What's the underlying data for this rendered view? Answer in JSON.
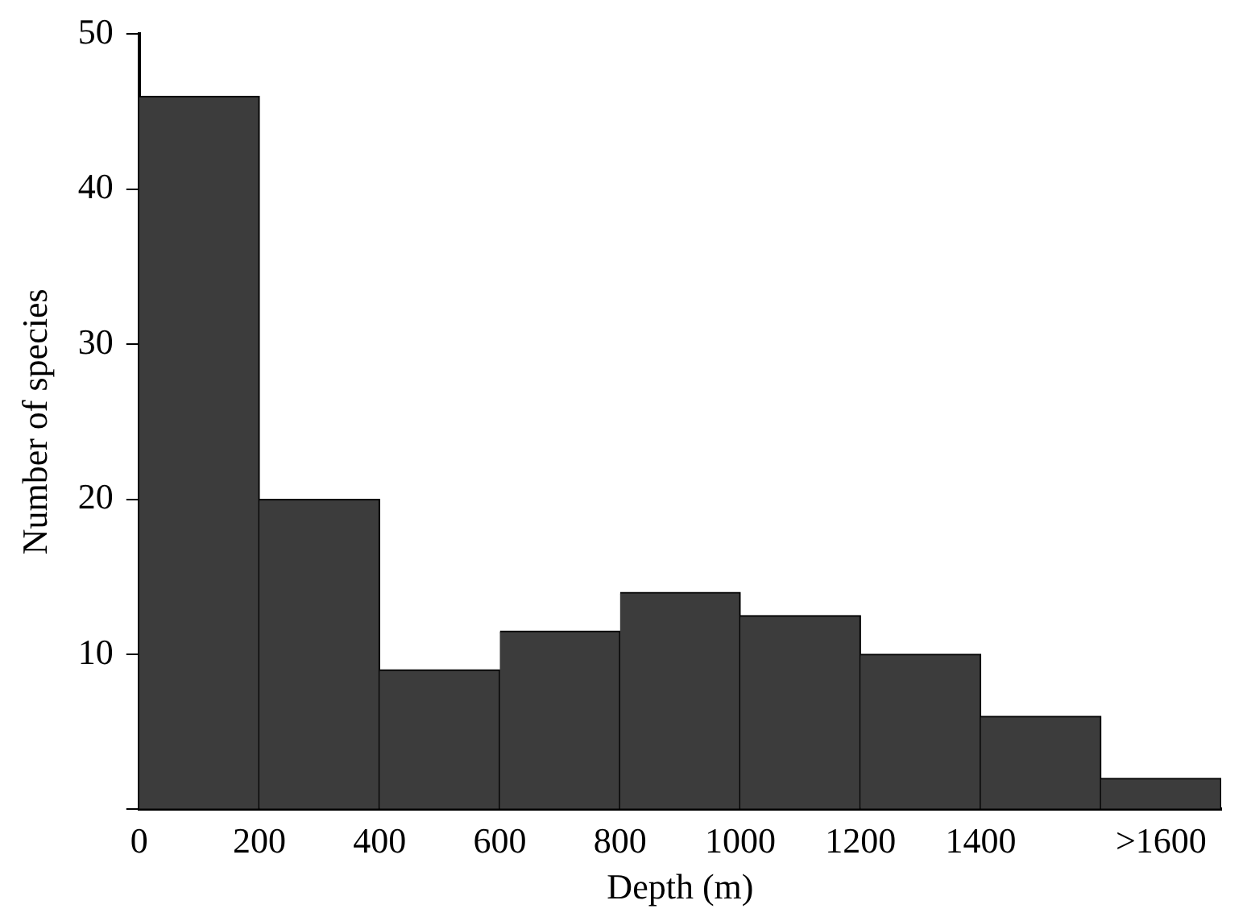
{
  "chart_data": {
    "type": "histogram",
    "xlabel": "Depth (m)",
    "ylabel": "Number of species",
    "bins": [
      0,
      200,
      400,
      600,
      800,
      1000,
      1200,
      1400,
      1600,
      1800
    ],
    "values": [
      46,
      20,
      9,
      11.5,
      14,
      12.5,
      10,
      6,
      2
    ],
    "color": "#3c3c3c",
    "xlim": [
      0,
      1800
    ],
    "xticks": [
      0,
      200,
      400,
      600,
      800,
      1000,
      1200,
      1400,
      {
        "value": 1700,
        "label": ">1600"
      }
    ],
    "ylim": [
      0,
      50
    ],
    "yticks": [
      {
        "value": 0,
        "label": null
      },
      10,
      20,
      30,
      40,
      50
    ],
    "grid": false,
    "legend": false
  }
}
